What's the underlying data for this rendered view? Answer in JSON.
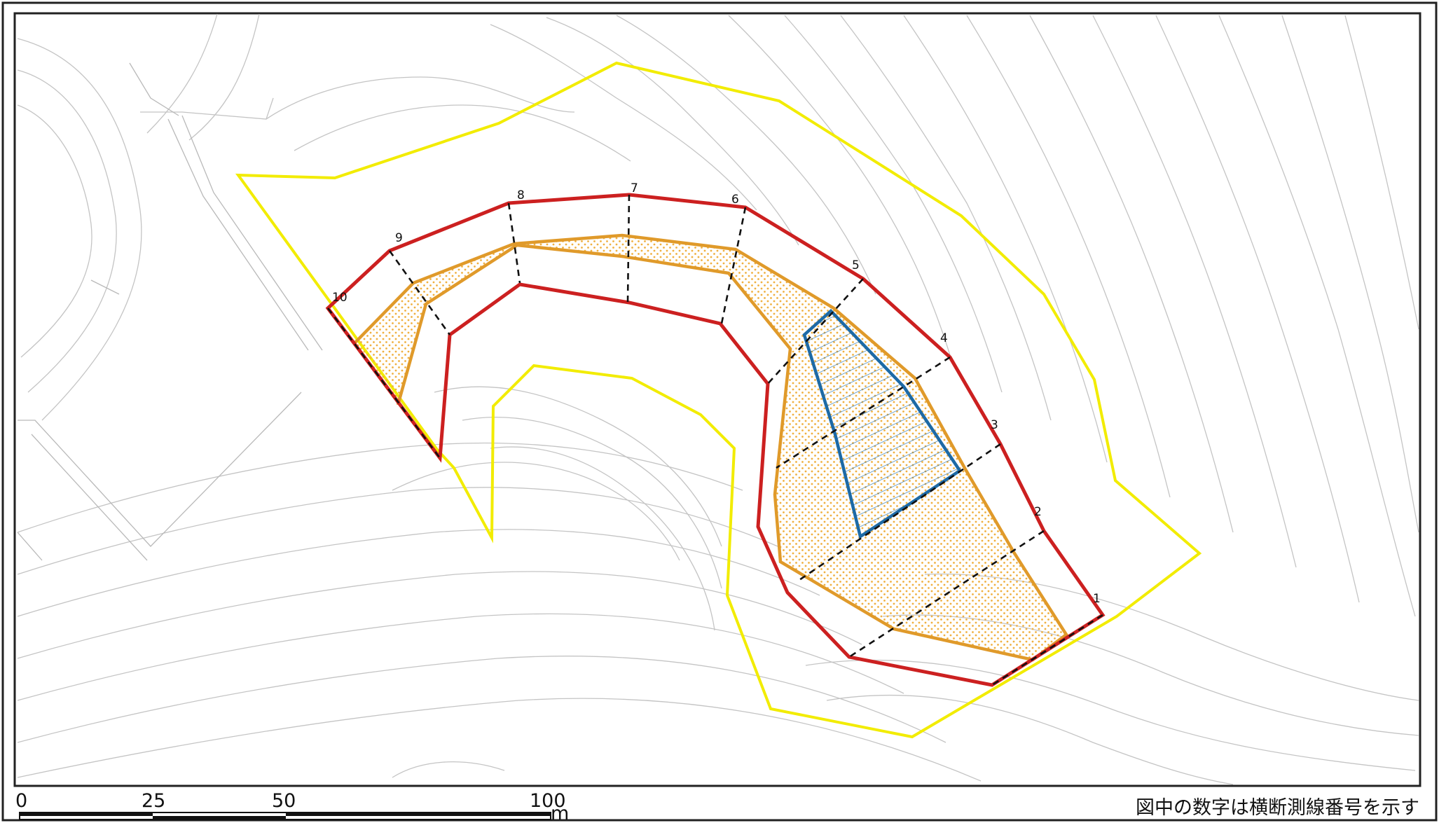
{
  "colors": {
    "background": "#ffffff",
    "frame": "#222222",
    "contours": "#c4c4c4",
    "survey_boundary": "#f2ec00",
    "landslide_outline": "#cc2020",
    "displaced_mass": "#e09a2a",
    "displaced_fill_dots": "#f0b040",
    "secondary_block": "#1d6aa6",
    "section_lines": "#111111"
  },
  "cross_section_lines": [
    {
      "number": "1"
    },
    {
      "number": "2"
    },
    {
      "number": "3"
    },
    {
      "number": "4"
    },
    {
      "number": "5"
    },
    {
      "number": "6"
    },
    {
      "number": "7"
    },
    {
      "number": "8"
    },
    {
      "number": "9"
    },
    {
      "number": "10"
    }
  ],
  "scale_bar": {
    "ticks": [
      "0",
      "25",
      "50",
      "100"
    ],
    "unit": "m"
  },
  "note": "図中の数字は横断測線番号を示す"
}
